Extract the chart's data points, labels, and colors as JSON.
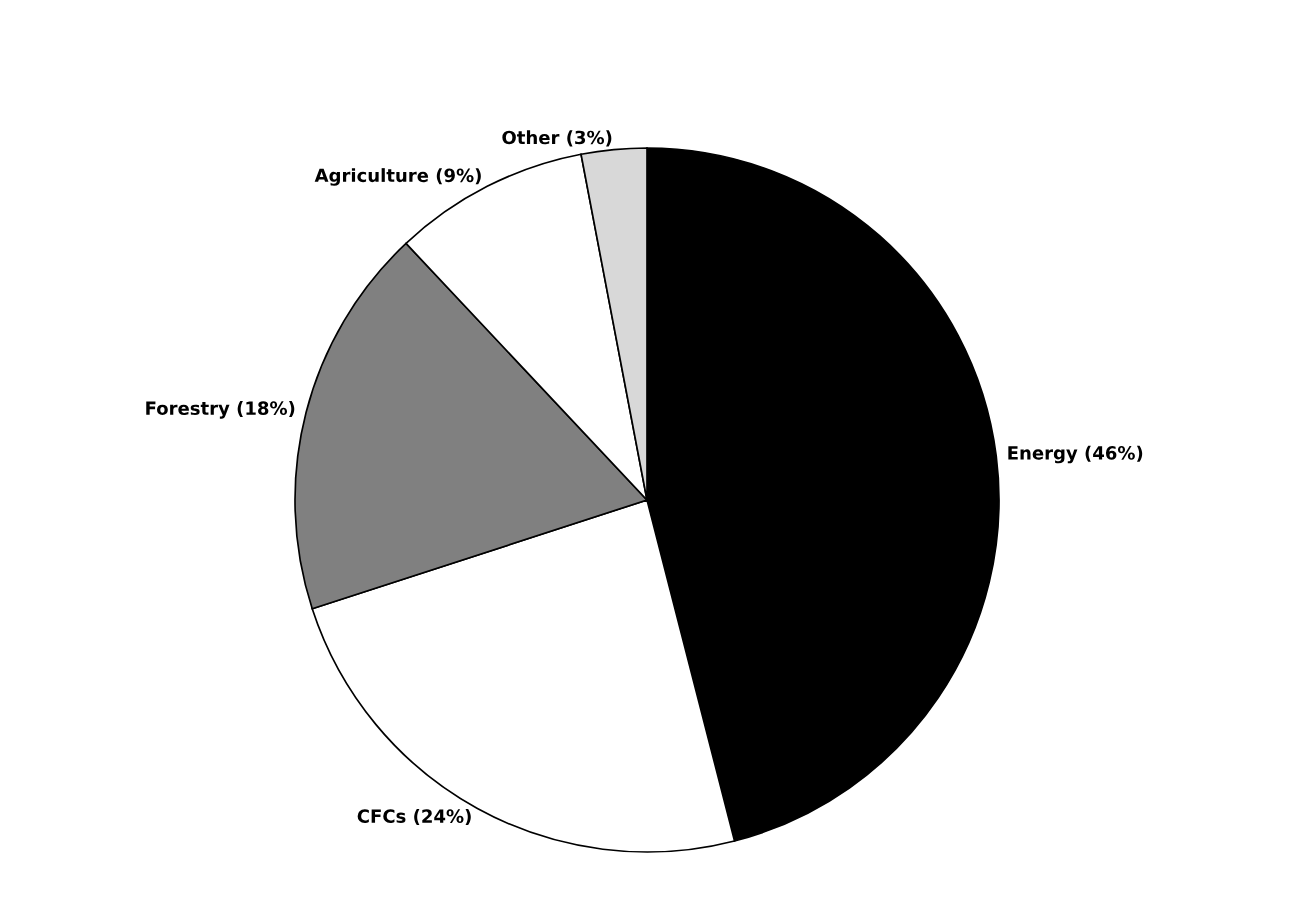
{
  "chart_data": {
    "type": "pie",
    "categories": [
      "Energy (46%)",
      "CFCs (24%)",
      "Forestry (18%)",
      "Agriculture (9%)",
      "Other (3%)"
    ],
    "values": [
      46,
      24,
      18,
      9,
      3
    ],
    "colors": [
      "#000000",
      "#ffffff",
      "#808080",
      "#ffffff",
      "#d8d8d8"
    ]
  }
}
